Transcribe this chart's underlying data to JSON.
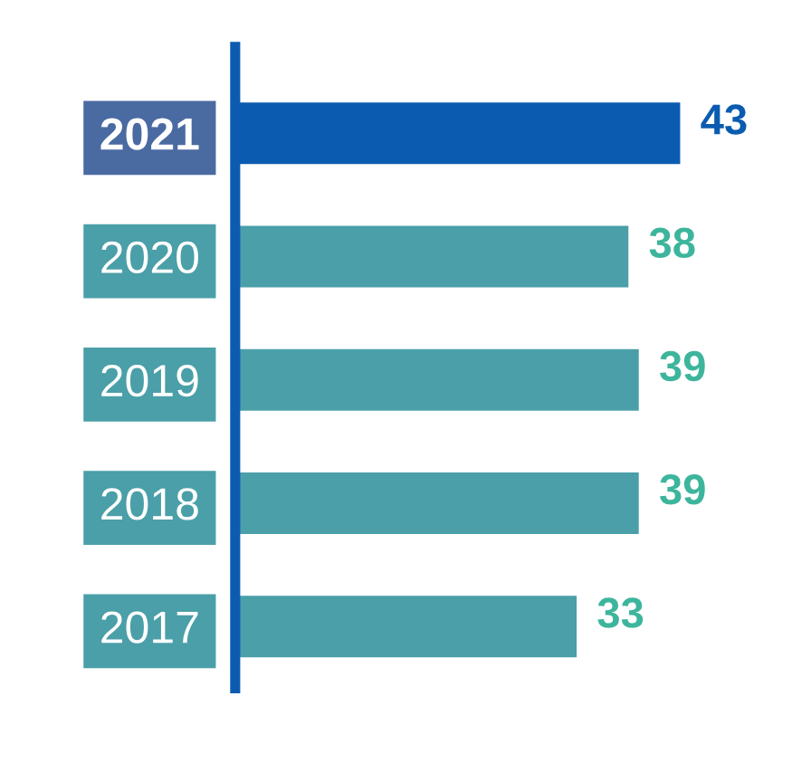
{
  "chart_data": {
    "type": "bar",
    "orientation": "horizontal",
    "categories": [
      "2021",
      "2020",
      "2019",
      "2018",
      "2017"
    ],
    "values": [
      43,
      38,
      39,
      39,
      33
    ],
    "colors": [
      "#0b5cb0",
      "#4a9fa8",
      "#4a9fa8",
      "#4a9fa8",
      "#4a9fa8"
    ],
    "data_labels": true
  }
}
